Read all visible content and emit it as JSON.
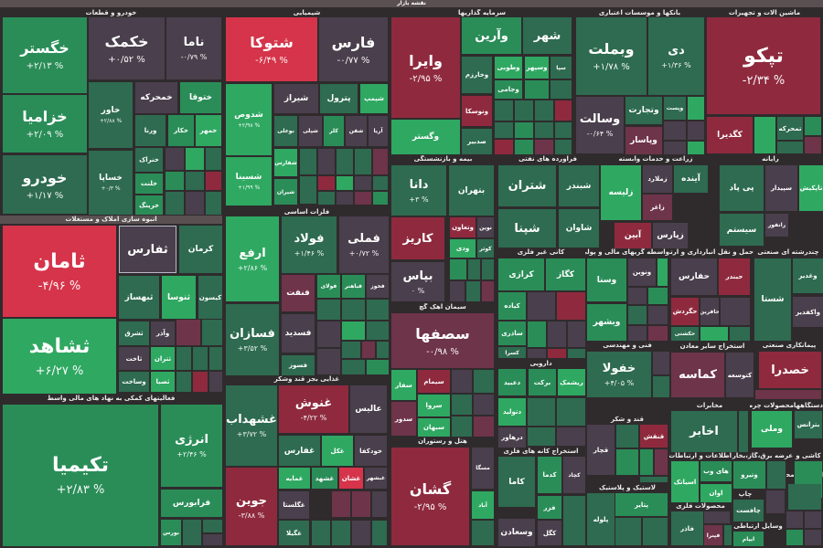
{
  "header": {
    "title": "نقشه بازار"
  },
  "tones": {
    "up3": "#2fa862",
    "up2": "#2a8d58",
    "up1": "#2e6b50",
    "flat": "#4a3f4c",
    "dn1": "#6e3449",
    "dn2": "#8f2a3e",
    "dn3": "#d5344a"
  },
  "sectors": [
    {
      "title": "خودرو و قطعات"
    },
    {
      "title": "شیمیایی"
    },
    {
      "title": "سرمایه گذاریها"
    },
    {
      "title": "بانکها و موسسات اعتباری"
    },
    {
      "title": "ماشین آلات و تجهیزات"
    },
    {
      "title": "انبوه سازی املاک و مستغلات"
    },
    {
      "title": "فلزات اساسی"
    },
    {
      "title": "غذایی بجز قند وشکر"
    },
    {
      "title": "فعالیتهای کمکی به نهاد های مالی واسط"
    },
    {
      "title": "بیمه و بازنشستگی"
    },
    {
      "title": "فرآورده های نفتی"
    },
    {
      "title": "زراعت و خدمات وابسته"
    },
    {
      "title": "رایانه"
    },
    {
      "title": "سیمان آهک گچ"
    },
    {
      "title": "کانی غیر فلزی"
    },
    {
      "title": "واسطه گریهای مالی و پولی"
    },
    {
      "title": "حمل و نقل انبارداری و ارتباطات"
    },
    {
      "title": "چندرشته ای صنعتی"
    },
    {
      "title": "فنی و مهندسی"
    },
    {
      "title": "استخراج سایر معادن"
    },
    {
      "title": "پیمانکاری صنعتی"
    },
    {
      "title": "دارویی"
    },
    {
      "title": "هتل و رستوران"
    },
    {
      "title": "استخراج کانه های فلزی"
    },
    {
      "title": "قند و شکر"
    },
    {
      "title": "لاستیک و پلاستیک"
    },
    {
      "title": "مخابرات"
    },
    {
      "title": "محصولات چرمی"
    },
    {
      "title": "دستگاههای"
    },
    {
      "title": "اطلاعات و ارتباطات"
    },
    {
      "title": "عرضه برق،گاز،بخار"
    },
    {
      "title": "کاشی و"
    },
    {
      "title": "محصولات فلزی"
    },
    {
      "title": "چاپ"
    },
    {
      "title": "استخراج محصولات"
    },
    {
      "title": "وسایل ارتباطی"
    }
  ],
  "tiles": [
    {
      "symbol": "خگستر",
      "change": "+۲/۱۳ %",
      "tone": "up2"
    },
    {
      "symbol": "خکمک",
      "change": "+۰/۵۲ %",
      "tone": "flat"
    },
    {
      "symbol": "ناما",
      "change": "-۰/۷۹ %",
      "tone": "flat"
    },
    {
      "symbol": "خزامیا",
      "change": "+۲/۰۹ %",
      "tone": "up2"
    },
    {
      "symbol": "خودرو",
      "change": "+۱/۱۷ %",
      "tone": "up1"
    },
    {
      "symbol": "خاور",
      "change": "+۲/۸۸ %",
      "tone": "up1"
    },
    {
      "symbol": "خساپا",
      "change": "+۰/۳ %",
      "tone": "up1"
    },
    {
      "symbol": "خمحرکه",
      "change": "",
      "tone": "flat"
    },
    {
      "symbol": "ختوقا",
      "change": "",
      "tone": "up2"
    },
    {
      "symbol": "ورنا",
      "change": "",
      "tone": "up1"
    },
    {
      "symbol": "خکار",
      "change": "",
      "tone": "up2"
    },
    {
      "symbol": "خمهر",
      "change": "",
      "tone": "up3"
    },
    {
      "symbol": "خنراک",
      "change": "",
      "tone": "up1"
    },
    {
      "symbol": "خلنت",
      "change": "",
      "tone": "up2"
    },
    {
      "symbol": "خرینگ",
      "change": "",
      "tone": "up2"
    },
    {
      "symbol": "شتوکا",
      "change": "-۶/۴۹ %",
      "tone": "dn3"
    },
    {
      "symbol": "فارس",
      "change": "-۰/۷۷ %",
      "tone": "flat"
    },
    {
      "symbol": "شدوص",
      "change": "+۲/۹۸ %",
      "tone": "up3"
    },
    {
      "symbol": "شسینا",
      "change": "+۱/۹۹ %",
      "tone": "up3"
    },
    {
      "symbol": "شیراز",
      "change": "",
      "tone": "flat"
    },
    {
      "symbol": "پترول",
      "change": "",
      "tone": "up1"
    },
    {
      "symbol": "شپمپ",
      "change": "",
      "tone": "up3"
    },
    {
      "symbol": "بوعلی",
      "change": "",
      "tone": "up1"
    },
    {
      "symbol": "شپلی",
      "change": "",
      "tone": "flat"
    },
    {
      "symbol": "کلر",
      "change": "",
      "tone": "up2"
    },
    {
      "symbol": "شفن",
      "change": "",
      "tone": "flat"
    },
    {
      "symbol": "آریا",
      "change": "",
      "tone": "flat"
    },
    {
      "symbol": "شفارس",
      "change": "",
      "tone": "up3"
    },
    {
      "symbol": "شیران",
      "change": "",
      "tone": "up2"
    },
    {
      "symbol": "ارفع",
      "change": "+۲/۸۶ %",
      "tone": "up3"
    },
    {
      "symbol": "فولاد",
      "change": "+۱/۴۶ %",
      "tone": "up1"
    },
    {
      "symbol": "فملی",
      "change": "+۰/۷۲ %",
      "tone": "flat"
    },
    {
      "symbol": "فسازان",
      "change": "+۳/۵۲ %",
      "tone": "up1"
    },
    {
      "symbol": "فنفت",
      "change": "",
      "tone": "dn1"
    },
    {
      "symbol": "فولای",
      "change": "",
      "tone": "up2"
    },
    {
      "symbol": "فباهنر",
      "change": "",
      "tone": "up2"
    },
    {
      "symbol": "فخوز",
      "change": "",
      "tone": "flat"
    },
    {
      "symbol": "فسدید",
      "change": "",
      "tone": "flat"
    },
    {
      "symbol": "فسوز",
      "change": "",
      "tone": "up1"
    },
    {
      "symbol": "غشهداب",
      "change": "+۳/۷۲ %",
      "tone": "up1"
    },
    {
      "symbol": "غنوش",
      "change": "-۴/۲۲ %",
      "tone": "dn2"
    },
    {
      "symbol": "عالیس",
      "change": "",
      "tone": "flat"
    },
    {
      "symbol": "جوین",
      "change": "-۳/۸۸ %",
      "tone": "dn2"
    },
    {
      "symbol": "غفارس",
      "change": "",
      "tone": "up1"
    },
    {
      "symbol": "غکل",
      "change": "",
      "tone": "up3"
    },
    {
      "symbol": "خودکفا",
      "change": "",
      "tone": "flat"
    },
    {
      "symbol": "غمایه",
      "change": "",
      "tone": "up3"
    },
    {
      "symbol": "غشهد",
      "change": "",
      "tone": "up2"
    },
    {
      "symbol": "غشان",
      "change": "",
      "tone": "dn3"
    },
    {
      "symbol": "غبشهر",
      "change": "",
      "tone": "flat"
    },
    {
      "symbol": "غگلستا",
      "change": "",
      "tone": "flat"
    },
    {
      "symbol": "غگیلا",
      "change": "",
      "tone": "up1"
    },
    {
      "symbol": "ثامان",
      "change": "-۴/۹۶ %",
      "tone": "dn3"
    },
    {
      "symbol": "ثشاهد",
      "change": "+۶/۲۷ %",
      "tone": "up3"
    },
    {
      "symbol": "ثفارس",
      "change": "",
      "tone": "flat"
    },
    {
      "symbol": "کرمان",
      "change": "",
      "tone": "up1"
    },
    {
      "symbol": "ثبهساز",
      "change": "",
      "tone": "up1"
    },
    {
      "symbol": "ثنوسا",
      "change": "",
      "tone": "up3"
    },
    {
      "symbol": "کیسون",
      "change": "",
      "tone": "up1"
    },
    {
      "symbol": "ثشرق",
      "change": "",
      "tone": "up1"
    },
    {
      "symbol": "وآذر",
      "change": "",
      "tone": "flat"
    },
    {
      "symbol": "ثاخت",
      "change": "",
      "tone": "flat"
    },
    {
      "symbol": "ثتران",
      "change": "",
      "tone": "up3"
    },
    {
      "symbol": "وساخت",
      "change": "",
      "tone": "up1"
    },
    {
      "symbol": "ثصبا",
      "change": "",
      "tone": "up3"
    },
    {
      "symbol": "تکیمیا",
      "change": "+۲/۸۳ %",
      "tone": "up2"
    },
    {
      "symbol": "انرژی",
      "change": "+۲/۴۶ %",
      "tone": "up2"
    },
    {
      "symbol": "فرابورس",
      "change": "",
      "tone": "up2"
    },
    {
      "symbol": "بورس",
      "change": "",
      "tone": "up2"
    },
    {
      "symbol": "وایرا",
      "change": "-۲/۹۵ %",
      "tone": "dn2"
    },
    {
      "symbol": "وگستر",
      "change": "",
      "tone": "up3"
    },
    {
      "symbol": "وآرین",
      "change": "",
      "tone": "up2"
    },
    {
      "symbol": "شهر",
      "change": "",
      "tone": "up1"
    },
    {
      "symbol": "وخارزم",
      "change": "",
      "tone": "up1"
    },
    {
      "symbol": "وطوبی",
      "change": "",
      "tone": "up3"
    },
    {
      "symbol": "وسپهر",
      "change": "",
      "tone": "up3"
    },
    {
      "symbol": "سپا",
      "change": "",
      "tone": "up1"
    },
    {
      "symbol": "ونوسکا",
      "change": "",
      "tone": "dn2"
    },
    {
      "symbol": "وجامی",
      "change": "",
      "tone": "up2"
    },
    {
      "symbol": "صدبیر",
      "change": "",
      "tone": "up1"
    },
    {
      "symbol": "دانا",
      "change": "+۳ %",
      "tone": "up1"
    },
    {
      "symbol": "بتهران",
      "change": "",
      "tone": "up1"
    },
    {
      "symbol": "کاریز",
      "change": "",
      "tone": "dn2"
    },
    {
      "symbol": "وتعاون",
      "change": "",
      "tone": "dn2"
    },
    {
      "symbol": "نوین",
      "change": "",
      "tone": "flat"
    },
    {
      "symbol": "ودی",
      "change": "",
      "tone": "up3"
    },
    {
      "symbol": "کوثر",
      "change": "",
      "tone": "up1"
    },
    {
      "symbol": "بپاس",
      "change": "۰ %",
      "tone": "flat"
    },
    {
      "symbol": "سصفها",
      "change": "-۰/۹۸ %",
      "tone": "dn1"
    },
    {
      "symbol": "سفار",
      "change": "",
      "tone": "up3"
    },
    {
      "symbol": "سیمام",
      "change": "",
      "tone": "dn2"
    },
    {
      "symbol": "سدور",
      "change": "",
      "tone": "dn1"
    },
    {
      "symbol": "سروا",
      "change": "",
      "tone": "up3"
    },
    {
      "symbol": "سبهان",
      "change": "",
      "tone": "up3"
    },
    {
      "symbol": "گشان",
      "change": "-۲/۹۵ %",
      "tone": "dn2"
    },
    {
      "symbol": "مسگا",
      "change": "",
      "tone": "flat"
    },
    {
      "symbol": "آباد",
      "change": "",
      "tone": "up3"
    },
    {
      "symbol": "وبملت",
      "change": "+۱/۷۸ %",
      "tone": "up1"
    },
    {
      "symbol": "دی",
      "change": "+۱/۳۶ %",
      "tone": "up1"
    },
    {
      "symbol": "وسالت",
      "change": "-۰/۶۴ %",
      "tone": "flat"
    },
    {
      "symbol": "وتجارت",
      "change": "",
      "tone": "up1"
    },
    {
      "symbol": "وپست",
      "change": "",
      "tone": "up1"
    },
    {
      "symbol": "وپاسار",
      "change": "",
      "tone": "dn1"
    },
    {
      "symbol": "تپکو",
      "change": "-۲/۳۴ %",
      "tone": "dn2"
    },
    {
      "symbol": "کگدیرا",
      "change": "",
      "tone": "dn2"
    },
    {
      "symbol": "تمحرکه",
      "change": "",
      "tone": "up1"
    },
    {
      "symbol": "شتران",
      "change": "",
      "tone": "up1"
    },
    {
      "symbol": "شبندر",
      "change": "",
      "tone": "up1"
    },
    {
      "symbol": "شپنا",
      "change": "",
      "tone": "up1"
    },
    {
      "symbol": "شاوان",
      "change": "",
      "tone": "up1"
    },
    {
      "symbol": "زلیسه",
      "change": "",
      "tone": "up3"
    },
    {
      "symbol": "زملارد",
      "change": "",
      "tone": "flat"
    },
    {
      "symbol": "آینده",
      "change": "",
      "tone": "up1"
    },
    {
      "symbol": "زاغر",
      "change": "",
      "tone": "dn1"
    },
    {
      "symbol": "آبین",
      "change": "",
      "tone": "dn2"
    },
    {
      "symbol": "زپارس",
      "change": "",
      "tone": "flat"
    },
    {
      "symbol": "پی پاد",
      "change": "",
      "tone": "up1"
    },
    {
      "symbol": "سپیدار",
      "change": "",
      "tone": "flat"
    },
    {
      "symbol": "تاپکیش",
      "change": "",
      "tone": "up3"
    },
    {
      "symbol": "سیستم",
      "change": "",
      "tone": "up1"
    },
    {
      "symbol": "رانفور",
      "change": "",
      "tone": "flat"
    },
    {
      "symbol": "کرازی",
      "change": "",
      "tone": "up2"
    },
    {
      "symbol": "کگاز",
      "change": "",
      "tone": "up2"
    },
    {
      "symbol": "کیاده",
      "change": "",
      "tone": "up2"
    },
    {
      "symbol": "ساذری",
      "change": "",
      "tone": "up2"
    },
    {
      "symbol": "کسرا",
      "change": "",
      "tone": "up1"
    },
    {
      "symbol": "وسنا",
      "change": "",
      "tone": "up2"
    },
    {
      "symbol": "ونوین",
      "change": "",
      "tone": "flat"
    },
    {
      "symbol": "وبشهر",
      "change": "",
      "tone": "up2"
    },
    {
      "symbol": "حفارس",
      "change": "",
      "tone": "flat"
    },
    {
      "symbol": "حبندر",
      "change": "",
      "tone": "dn2"
    },
    {
      "symbol": "حگردش",
      "change": "",
      "tone": "dn2"
    },
    {
      "symbol": "حافرین",
      "change": "",
      "tone": "flat"
    },
    {
      "symbol": "حکشتی",
      "change": "",
      "tone": "up1"
    },
    {
      "symbol": "شستا",
      "change": "",
      "tone": "up1"
    },
    {
      "symbol": "وغدیر",
      "change": "",
      "tone": "up1"
    },
    {
      "symbol": "واکفدیر",
      "change": "",
      "tone": "flat"
    },
    {
      "symbol": "خفولا",
      "change": "+۴/۰۵ %",
      "tone": "up1"
    },
    {
      "symbol": "کماسه",
      "change": "",
      "tone": "dn1"
    },
    {
      "symbol": "کتوسعه",
      "change": "",
      "tone": "flat"
    },
    {
      "symbol": "خصدرا",
      "change": "",
      "tone": "dn2"
    },
    {
      "symbol": "دعبید",
      "change": "",
      "tone": "up2"
    },
    {
      "symbol": "برکت",
      "change": "",
      "tone": "up2"
    },
    {
      "symbol": "ریشمک",
      "change": "",
      "tone": "up3"
    },
    {
      "symbol": "دتولید",
      "change": "",
      "tone": "up3"
    },
    {
      "symbol": "درهاور",
      "change": "",
      "tone": "flat"
    },
    {
      "symbol": "کاما",
      "change": "",
      "tone": "up1"
    },
    {
      "symbol": "کدما",
      "change": "",
      "tone": "up2"
    },
    {
      "symbol": "کچاد",
      "change": "",
      "tone": "flat"
    },
    {
      "symbol": "فزر",
      "change": "",
      "tone": "up2"
    },
    {
      "symbol": "وسعادن",
      "change": "",
      "tone": "flat"
    },
    {
      "symbol": "کگل",
      "change": "",
      "tone": "flat"
    },
    {
      "symbol": "قچار",
      "change": "",
      "tone": "flat"
    },
    {
      "symbol": "قنقش",
      "change": "",
      "tone": "dn2"
    },
    {
      "symbol": "پلوله",
      "change": "",
      "tone": "up1"
    },
    {
      "symbol": "پتایر",
      "change": "",
      "tone": "up2"
    },
    {
      "symbol": "اخابر",
      "change": "",
      "tone": "up1"
    },
    {
      "symbol": "وملی",
      "change": "",
      "tone": "up3"
    },
    {
      "symbol": "بترانس",
      "change": "",
      "tone": "up1"
    },
    {
      "symbol": "اسیاتک",
      "change": "",
      "tone": "up3"
    },
    {
      "symbol": "های وب",
      "change": "",
      "tone": "up2"
    },
    {
      "symbol": "اوان",
      "change": "",
      "tone": "up3"
    },
    {
      "symbol": "وتیرو",
      "change": "",
      "tone": "up2"
    },
    {
      "symbol": "فاذر",
      "change": "",
      "tone": "up1"
    },
    {
      "symbol": "فپنرا",
      "change": "",
      "tone": "dn1"
    },
    {
      "symbol": "چافست",
      "change": "",
      "tone": "up1"
    },
    {
      "symbol": "ایپام",
      "change": "",
      "tone": "up2"
    }
  ]
}
